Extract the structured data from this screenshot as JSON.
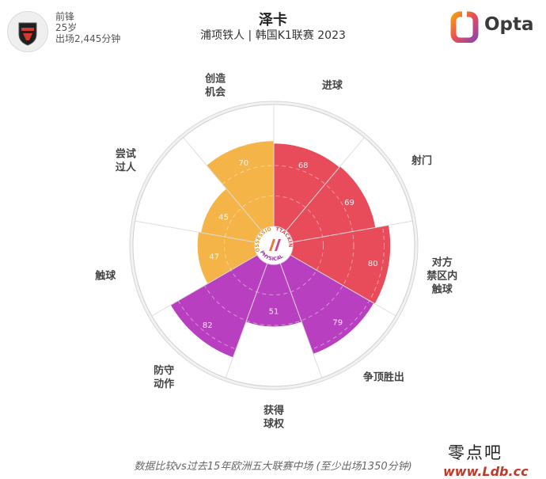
{
  "header": {
    "position": "前锋",
    "age": "25岁",
    "minutes": "出场2,445分钟",
    "player_name": "泽卡",
    "team_league": "浦项铁人 | 韩国K1联赛 2023",
    "logo_text": "Opta"
  },
  "center_badge": {
    "labels": [
      "POSSESSION",
      "ATTACKING",
      "PHYSICAL"
    ]
  },
  "colors": {
    "attacking": "#e84c5b",
    "possession": "#f4b447",
    "defending": "#b83fbf",
    "opta_gradient_start": "#f39c12",
    "opta_gradient_end": "#8e44ad"
  },
  "chart_data": {
    "type": "polar-bar",
    "rlim": [
      0,
      100
    ],
    "categories": [
      "进球",
      "射门",
      "对方禁区内触球",
      "争顶胜出",
      "获得球权",
      "防守动作",
      "触球",
      "尝试过人",
      "创造机会"
    ],
    "display_labels": [
      "进球",
      "射门",
      "对方\n禁区内\n触球",
      "争顶胜出",
      "获得\n球权",
      "防守\n动作",
      "触球",
      "尝试\n过人",
      "创造\n机会"
    ],
    "values": [
      68,
      69,
      80,
      79,
      51,
      82,
      47,
      45,
      70
    ],
    "groups": [
      "attacking",
      "attacking",
      "attacking",
      "defending",
      "defending",
      "defending",
      "possession",
      "possession",
      "possession"
    ]
  },
  "footnote": "数据比较vs过去15年欧洲五大联赛中场 (至少出场1350分钟)",
  "watermark": {
    "text": "零点吧",
    "url": "www.Ldb.cc"
  }
}
